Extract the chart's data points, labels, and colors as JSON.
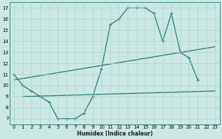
{
  "bg_color": "#cce8e5",
  "grid_color": "#aecfcc",
  "line_color": "#1a7a6e",
  "xlim": [
    -0.5,
    23.5
  ],
  "ylim": [
    6.5,
    17.5
  ],
  "xlabel": "Humidex (Indice chaleur)",
  "curve1_x": [
    0,
    1,
    2,
    3,
    4,
    5,
    6,
    7,
    8,
    9,
    10,
    11,
    12,
    13,
    14,
    15,
    16,
    17,
    18,
    19,
    20,
    21
  ],
  "curve1_y": [
    11.0,
    10.0,
    9.5,
    9.0,
    8.5,
    7.0,
    7.0,
    7.0,
    7.5,
    9.0,
    11.5,
    15.5,
    16.0,
    17.0,
    17.0,
    17.0,
    16.5,
    14.0,
    16.5,
    13.0,
    12.5,
    10.5
  ],
  "curve2_x": [
    1,
    23
  ],
  "curve2_y": [
    9.0,
    9.5
  ],
  "curve3_x": [
    0,
    23
  ],
  "curve3_y": [
    10.5,
    13.5
  ]
}
